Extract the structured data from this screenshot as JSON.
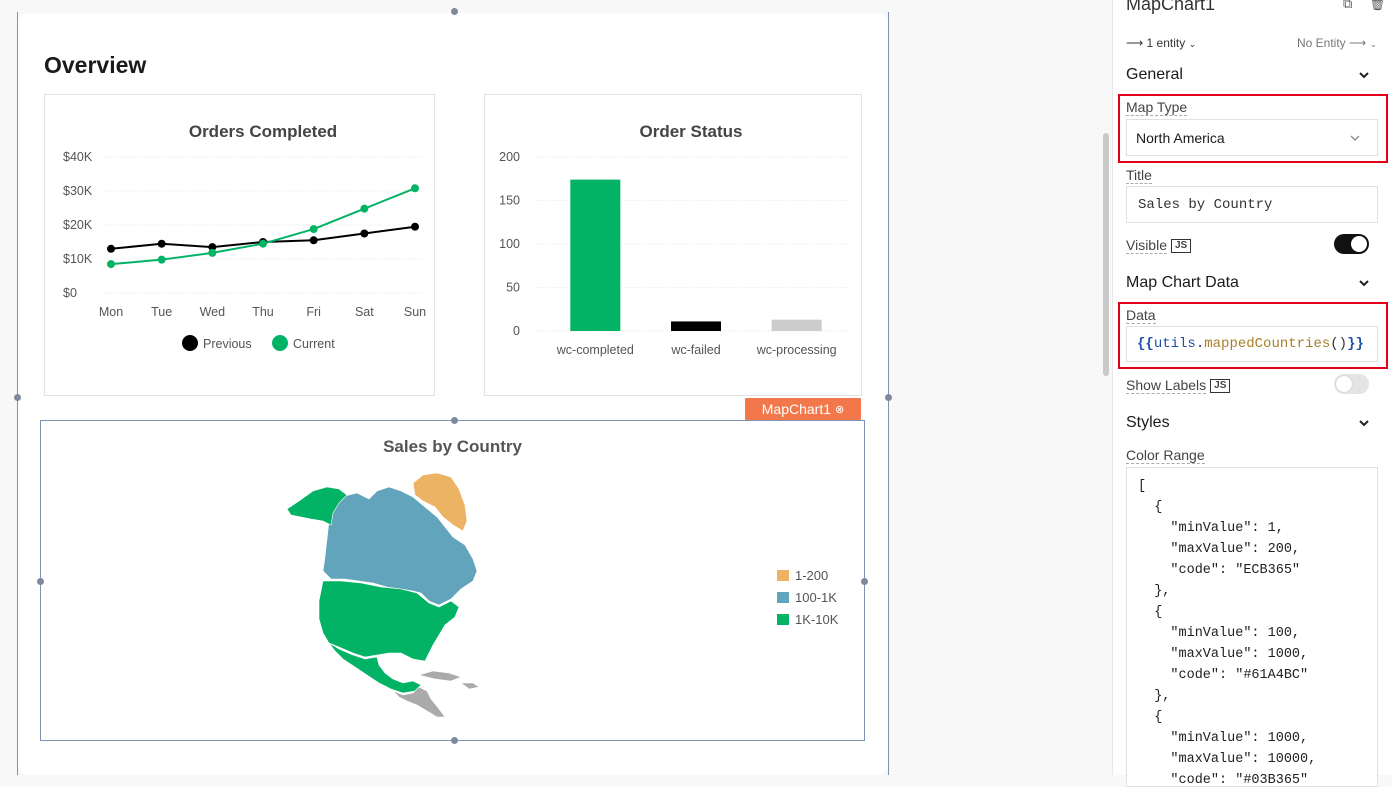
{
  "canvas": {
    "overview_title": "Overview"
  },
  "orders_chart": {
    "chart_data": {
      "type": "line",
      "title": "Orders Completed",
      "categories": [
        "Mon",
        "Tue",
        "Wed",
        "Thu",
        "Fri",
        "Sat",
        "Sun"
      ],
      "y_ticks": [
        "$0",
        "$10K",
        "$20K",
        "$30K",
        "$40K"
      ],
      "ylim": [
        0,
        40000
      ],
      "series": [
        {
          "name": "Previous",
          "color": "#000000",
          "values": [
            13000,
            14500,
            13500,
            15000,
            15500,
            17500,
            19500
          ]
        },
        {
          "name": "Current",
          "color": "#03B365",
          "values": [
            8500,
            9800,
            11800,
            14500,
            18800,
            24800,
            30800
          ]
        }
      ],
      "legend_position": "bottom-center",
      "grid": true
    }
  },
  "status_chart": {
    "chart_data": {
      "type": "bar",
      "title": "Order Status",
      "categories": [
        "wc-completed",
        "wc-failed",
        "wc-processing"
      ],
      "values": [
        174,
        11,
        13
      ],
      "colors": [
        "#03B365",
        "#000000",
        "#cccccc"
      ],
      "y_ticks": [
        "0",
        "50",
        "100",
        "150",
        "200"
      ],
      "ylim": [
        0,
        200
      ],
      "grid": true
    }
  },
  "map_chart": {
    "badge_label": "MapChart1",
    "title": "Sales by Country",
    "legend": [
      {
        "label": "1-200",
        "color": "#ECB365"
      },
      {
        "label": "100-1K",
        "color": "#61A4BC"
      },
      {
        "label": "1K-10K",
        "color": "#03B365"
      }
    ],
    "region_colors": {
      "greenland": "#ECB365",
      "canada": "#61A4BC",
      "usa_alaska_mexico": "#03B365",
      "central_america": "#aaaaaa"
    }
  },
  "panel": {
    "widget_name": "MapChart1",
    "entity_left": "1 entity",
    "entity_right": "No Entity",
    "general_section": "General",
    "map_type_label": "Map Type",
    "map_type_value": "North America",
    "title_label": "Title",
    "title_value": "Sales by Country",
    "visible_label": "Visible",
    "js_badge": "JS",
    "visible_on": true,
    "map_data_section": "Map Chart Data",
    "data_label": "Data",
    "data_open": "{{",
    "data_obj": "utils",
    "data_dot": ".",
    "data_fn": "mappedCountries",
    "data_parens": "()",
    "data_close": "}}",
    "show_labels_label": "Show Labels",
    "show_labels_on": false,
    "styles_section": "Styles",
    "color_range_label": "Color Range",
    "color_range_code": "[\n  {\n    \"minValue\": 1,\n    \"maxValue\": 200,\n    \"code\": \"ECB365\"\n  },\n  {\n    \"minValue\": 100,\n    \"maxValue\": 1000,\n    \"code\": \"#61A4BC\"\n  },\n  {\n    \"minValue\": 1000,\n    \"maxValue\": 10000,\n    \"code\": \"#03B365\""
  }
}
